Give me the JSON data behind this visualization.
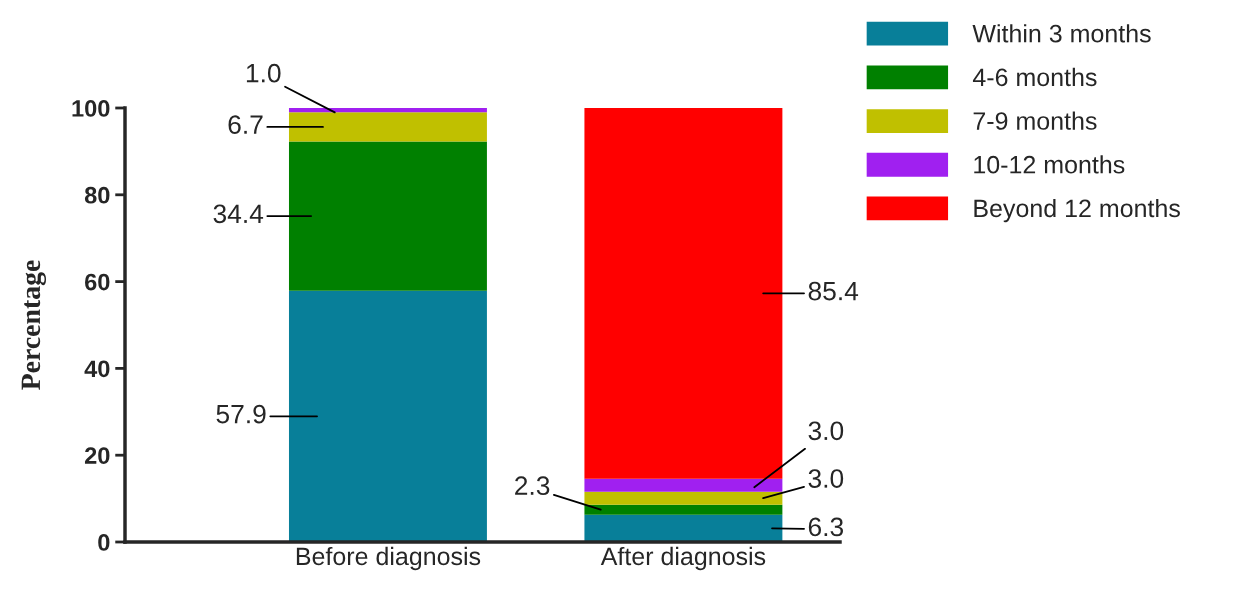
{
  "chart_data": {
    "type": "bar",
    "stacked": true,
    "ylabel": "Percentage",
    "categories": [
      "Before diagnosis",
      "After diagnosis"
    ],
    "series": [
      {
        "name": "Within 3 months",
        "color": "#087f99",
        "values": [
          57.9,
          6.3
        ],
        "value_labels": [
          "57.9",
          "6.3"
        ]
      },
      {
        "name": "4-6 months",
        "color": "#008000",
        "values": [
          34.4,
          2.3
        ],
        "value_labels": [
          "34.4",
          "2.3"
        ]
      },
      {
        "name": "7-9 months",
        "color": "#c0c000",
        "values": [
          6.7,
          3.0
        ],
        "value_labels": [
          "6.7",
          "3.0"
        ]
      },
      {
        "name": "10-12 months",
        "color": "#a020f0",
        "values": [
          1.0,
          3.0
        ],
        "value_labels": [
          "1.0",
          "3.0"
        ]
      },
      {
        "name": "Beyond 12 months",
        "color": "#ff0000",
        "values": [
          null,
          85.4
        ],
        "value_labels": [
          null,
          "85.4"
        ]
      }
    ],
    "ylim": [
      0,
      100
    ],
    "yticks": [
      0,
      20,
      40,
      60,
      80,
      100
    ],
    "legend": "top right",
    "grid": false
  }
}
